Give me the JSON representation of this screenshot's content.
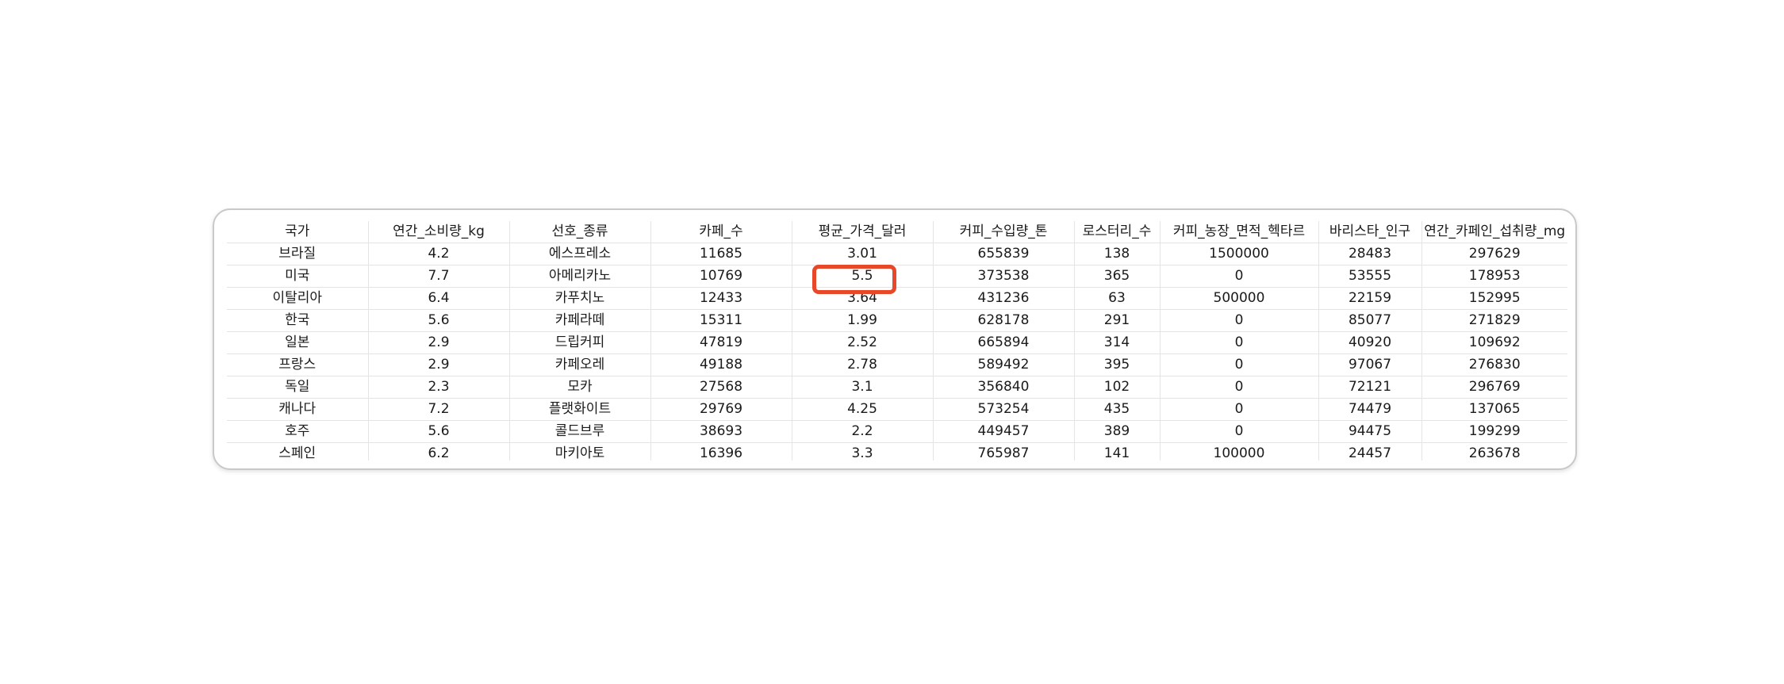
{
  "table": {
    "columns": [
      "국가",
      "연간_소비량_kg",
      "선호_종류",
      "카페_수",
      "평균_가격_달러",
      "커피_수입량_톤",
      "로스터리_수",
      "커피_농장_면적_헥타르",
      "바리스타_인구",
      "연간_카페인_섭취량_mg"
    ],
    "rows": [
      [
        "브라질",
        "4.2",
        "에스프레소",
        "11685",
        "3.01",
        "655839",
        "138",
        "1500000",
        "28483",
        "297629"
      ],
      [
        "미국",
        "7.7",
        "아메리카노",
        "10769",
        "5.5",
        "373538",
        "365",
        "0",
        "53555",
        "178953"
      ],
      [
        "이탈리아",
        "6.4",
        "카푸치노",
        "12433",
        "3.64",
        "431236",
        "63",
        "500000",
        "22159",
        "152995"
      ],
      [
        "한국",
        "5.6",
        "카페라떼",
        "15311",
        "1.99",
        "628178",
        "291",
        "0",
        "85077",
        "271829"
      ],
      [
        "일본",
        "2.9",
        "드립커피",
        "47819",
        "2.52",
        "665894",
        "314",
        "0",
        "40920",
        "109692"
      ],
      [
        "프랑스",
        "2.9",
        "카페오레",
        "49188",
        "2.78",
        "589492",
        "395",
        "0",
        "97067",
        "276830"
      ],
      [
        "독일",
        "2.3",
        "모카",
        "27568",
        "3.1",
        "356840",
        "102",
        "0",
        "72121",
        "296769"
      ],
      [
        "캐나다",
        "7.2",
        "플랫화이트",
        "29769",
        "4.25",
        "573254",
        "435",
        "0",
        "74479",
        "137065"
      ],
      [
        "호주",
        "5.6",
        "콜드브루",
        "38693",
        "2.2",
        "449457",
        "389",
        "0",
        "94475",
        "199299"
      ],
      [
        "스페인",
        "6.2",
        "마키아토",
        "16396",
        "3.3",
        "765987",
        "141",
        "100000",
        "24457",
        "263678"
      ]
    ],
    "highlight": {
      "row": 1,
      "column": 4,
      "color": "#e8482a"
    }
  }
}
